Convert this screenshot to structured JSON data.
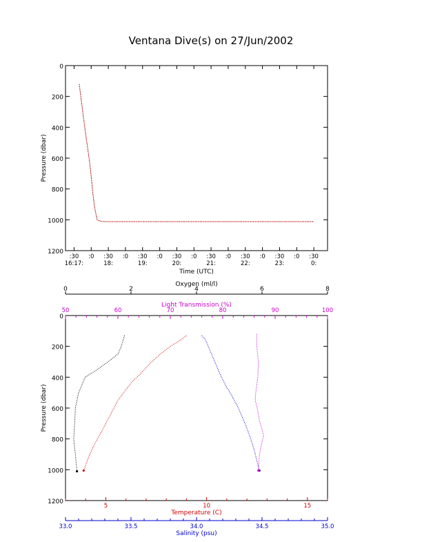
{
  "title": "Ventana Dive(s) on 27/Jun/2002",
  "colors": {
    "axis": "#000000",
    "temperature": "#cc0000",
    "salinity": "#0000cc",
    "oxygen": "#000000",
    "light_transmission": "#cc00cc",
    "grid": "#cccccc"
  },
  "chart_data": [
    {
      "type": "line",
      "title": "Ventana Dive(s) on 27/Jun/2002",
      "xlabel": "Time (UTC)",
      "ylabel": "Pressure (dbar)",
      "ylim": [
        1200,
        0
      ],
      "yticks": [
        "0",
        "200",
        "400",
        "600",
        "800",
        "1000",
        "1200"
      ],
      "xticks_top": [
        ":30",
        ":0",
        ":30",
        ":0",
        ":30",
        ":0",
        ":30",
        ":0",
        ":30",
        ":0",
        ":30",
        ":0",
        ":30",
        ":0",
        ":30"
      ],
      "xticks_bottom": [
        "16:17:",
        "18:",
        "19:",
        "20:",
        "21:",
        "22:",
        "23:",
        "0:"
      ],
      "grid": false,
      "series": [
        {
          "x": [
            0.3,
            0.45,
            0.6,
            0.75,
            0.9,
            1.0,
            1.1,
            1.2,
            1.35,
            1.5,
            1.65,
            1.8,
            2.0,
            2.5,
            3.0,
            4.0,
            5.0,
            6.0,
            7.0,
            8.0,
            9.0,
            10.0,
            11.0,
            12.0,
            13.0,
            14.0
          ],
          "y": [
            120,
            250,
            380,
            500,
            620,
            720,
            830,
            920,
            1000,
            1008,
            1010,
            1012,
            1012,
            1012,
            1012,
            1012,
            1012,
            1012,
            1012,
            1012,
            1012,
            1012,
            1012,
            1012,
            1012,
            1012
          ]
        }
      ]
    },
    {
      "type": "line",
      "ylabel": "Pressure (dbar)",
      "ylim": [
        1200,
        0
      ],
      "yticks": [
        "0",
        "200",
        "400",
        "600",
        "800",
        "1000",
        "1200"
      ],
      "axes": {
        "oxygen": {
          "label": "Oxygen (ml/l)",
          "range": [
            0,
            8
          ],
          "ticks": [
            "0",
            "2",
            "4",
            "6",
            "8"
          ],
          "position": "top-outer"
        },
        "light_transmission": {
          "label": "Light Transmission (%)",
          "range": [
            50,
            100
          ],
          "ticks": [
            "50",
            "60",
            "70",
            "80",
            "90",
            "100"
          ],
          "position": "top-inner"
        },
        "temperature": {
          "label": "Temperature (C)",
          "range": [
            3,
            16
          ],
          "ticks": [
            "5",
            "10",
            "15"
          ],
          "position": "bottom-inner"
        },
        "salinity": {
          "label": "Salinity (psu)",
          "range": [
            33.0,
            35.0
          ],
          "ticks": [
            "33.0",
            "33.5",
            "34.0",
            "34.5",
            "35.0"
          ],
          "position": "bottom-outer"
        }
      },
      "grid": false,
      "series": [
        {
          "axis": "oxygen",
          "values": [
            1.8,
            1.7,
            1.6,
            1.3,
            0.9,
            0.6,
            0.5,
            0.4,
            0.3,
            0.28,
            0.25,
            0.3,
            0.35
          ],
          "pressure": [
            130,
            200,
            250,
            300,
            360,
            400,
            450,
            500,
            600,
            700,
            800,
            900,
            1010
          ]
        },
        {
          "axis": "temperature",
          "values": [
            9.0,
            8.7,
            8.2,
            7.7,
            7.2,
            6.7,
            6.3,
            6.0,
            5.6,
            5.2,
            4.8,
            4.5,
            4.2,
            3.9
          ],
          "pressure": [
            130,
            160,
            200,
            250,
            310,
            380,
            430,
            480,
            550,
            650,
            750,
            820,
            900,
            1005
          ]
        },
        {
          "axis": "salinity",
          "values": [
            34.04,
            34.07,
            34.1,
            34.14,
            34.18,
            34.22,
            34.27,
            34.32,
            34.37,
            34.41,
            34.44,
            34.46,
            34.48
          ],
          "pressure": [
            130,
            160,
            220,
            300,
            380,
            450,
            520,
            600,
            700,
            790,
            870,
            940,
            1005
          ]
        },
        {
          "axis": "light_transmission",
          "values": [
            86.5,
            86.5,
            86.8,
            86.7,
            86.3,
            86.2,
            86.6,
            87.0,
            87.5,
            87.8,
            87.5,
            87.0,
            86.8
          ],
          "pressure": [
            120,
            200,
            300,
            400,
            500,
            550,
            600,
            680,
            740,
            780,
            820,
            900,
            1005
          ]
        }
      ]
    }
  ]
}
